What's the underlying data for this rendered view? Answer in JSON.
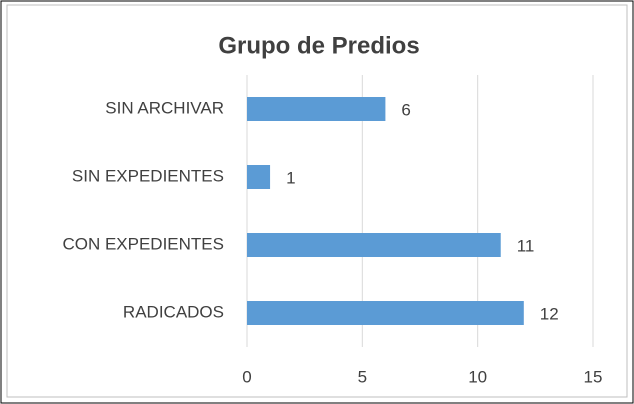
{
  "chart_data": {
    "type": "bar",
    "orientation": "horizontal",
    "title": "Grupo de Predios",
    "categories": [
      "SIN ARCHIVAR",
      "SIN EXPEDIENTES",
      "CON EXPEDIENTES",
      "RADICADOS"
    ],
    "values": [
      6,
      1,
      11,
      12
    ],
    "color": "#5b9bd5",
    "xlim": [
      0,
      15
    ],
    "xticks": [
      0,
      5,
      10,
      15
    ],
    "grid": true
  }
}
